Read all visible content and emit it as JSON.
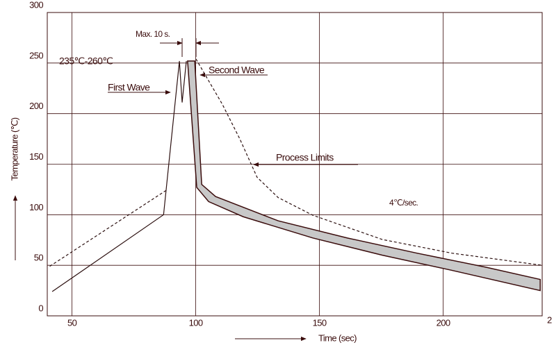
{
  "chart_data": {
    "type": "line",
    "y_label": "Temperature (℃)",
    "x_label": "Time (sec)",
    "xlim": [
      40,
      240
    ],
    "ylim": [
      0,
      300
    ],
    "xticks": [
      50,
      100,
      150,
      200
    ],
    "yticks": [
      0,
      50,
      100,
      150,
      200,
      250,
      300
    ],
    "grid": true,
    "corner_label": "2",
    "annotations": [
      "Max. 10 s.",
      "235℃-260℃",
      "First Wave",
      "Second Wave",
      "Process Limits",
      "4℃/sec."
    ],
    "series": [
      {
        "style": "solid",
        "color": "#2b0f0f",
        "x": [
          42,
          87,
          93.4,
          94.5,
          96.2
        ],
        "values": [
          24,
          100,
          252,
          211,
          252
        ]
      },
      {
        "style": "dashed",
        "color": "#2b0f0f",
        "x": [
          41,
          88
        ],
        "values": [
          49,
          124
        ]
      },
      {
        "style": "dashed",
        "color": "#2b0f0f",
        "x": [
          100.1,
          110.8,
          117.8,
          124.8,
          133.3,
          147.3,
          175.4,
          203.5,
          240
        ],
        "values": [
          254,
          209,
          175,
          137,
          117,
          99.5,
          75.5,
          62,
          50
        ]
      }
    ],
    "band": {
      "color": "#c8c8c8",
      "upper": {
        "x": [
          99.6,
          102.4,
          108,
          133.3,
          161.3,
          189.4,
          217.5,
          239.2
        ],
        "values": [
          252,
          130,
          118,
          94,
          77,
          62,
          48,
          36
        ]
      },
      "lower": {
        "x": [
          96.7,
          100.4,
          105.2,
          119.2,
          147.3,
          175.4,
          203.5,
          239.2
        ],
        "values": [
          252,
          127,
          113,
          98,
          77,
          60,
          45,
          25
        ]
      }
    }
  }
}
